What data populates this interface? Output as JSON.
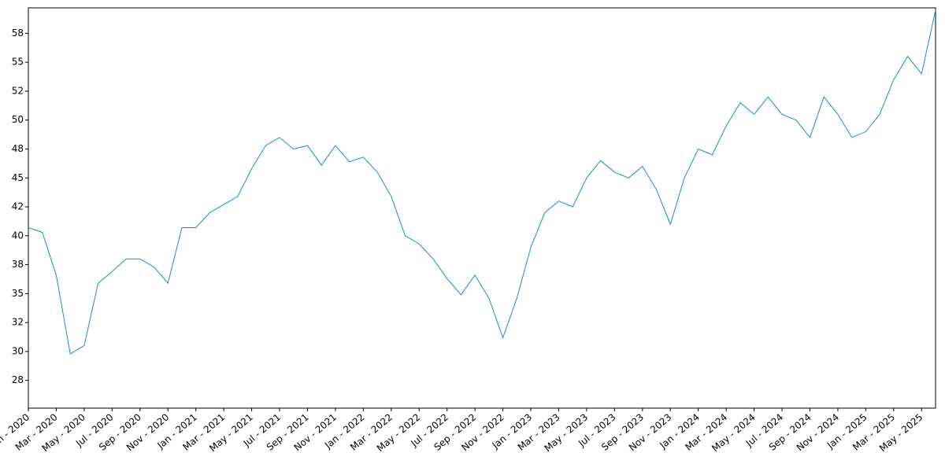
{
  "chart_data": {
    "type": "line",
    "x": [
      "2020-01",
      "2020-02",
      "2020-03",
      "2020-04",
      "2020-05",
      "2020-06",
      "2020-07",
      "2020-08",
      "2020-09",
      "2020-10",
      "2020-11",
      "2020-12",
      "2021-01",
      "2021-02",
      "2021-03",
      "2021-04",
      "2021-05",
      "2021-06",
      "2021-07",
      "2021-08",
      "2021-09",
      "2021-10",
      "2021-11",
      "2021-12",
      "2022-01",
      "2022-02",
      "2022-03",
      "2022-04",
      "2022-05",
      "2022-06",
      "2022-07",
      "2022-08",
      "2022-09",
      "2022-10",
      "2022-11",
      "2022-12",
      "2023-01",
      "2023-02",
      "2023-03",
      "2023-04",
      "2023-05",
      "2023-06",
      "2023-07",
      "2023-08",
      "2023-09",
      "2023-10",
      "2023-11",
      "2023-12",
      "2024-01",
      "2024-02",
      "2024-03",
      "2024-04",
      "2024-05",
      "2024-06",
      "2024-07",
      "2024-08",
      "2024-09",
      "2024-10",
      "2024-11",
      "2024-12",
      "2025-01",
      "2025-02",
      "2025-03",
      "2025-04",
      "2025-05",
      "2025-06"
    ],
    "series": [
      {
        "color": "#0f8ed6",
        "values": [
          40.7,
          40.3,
          36.6,
          29.8,
          30.5,
          35.9,
          36.9,
          38.0,
          38.0,
          37.3,
          35.9,
          40.7,
          40.7,
          42.0,
          42.7,
          43.4,
          45.8,
          47.8,
          48.5,
          47.5,
          47.8,
          46.1,
          47.8,
          46.4,
          46.8,
          45.5,
          43.4,
          40.0,
          39.3,
          38.0,
          36.3,
          34.9,
          36.6,
          34.6,
          31.2,
          34.6,
          39.0,
          42.0,
          43.0,
          42.5,
          45.0,
          46.5,
          45.5,
          45.0,
          46.0,
          44.0,
          41.0,
          45.0,
          47.5,
          47.0,
          49.5,
          51.5,
          50.5,
          52.0,
          50.5,
          50.0,
          48.5,
          52.0,
          50.5,
          48.5,
          49.0,
          50.5,
          53.5,
          55.5,
          54.0,
          59.5
        ]
      }
    ],
    "xlim": [
      "2020-01",
      "2025-06"
    ],
    "xticks": [
      {
        "value": "2020-01",
        "label": "Jan - 2020"
      },
      {
        "value": "2020-03",
        "label": "Mar - 2020"
      },
      {
        "value": "2020-05",
        "label": "May - 2020"
      },
      {
        "value": "2020-07",
        "label": "Jul - 2020"
      },
      {
        "value": "2020-09",
        "label": "Sep - 2020"
      },
      {
        "value": "2020-11",
        "label": "Nov - 2020"
      },
      {
        "value": "2021-01",
        "label": "Jan - 2021"
      },
      {
        "value": "2021-03",
        "label": "Mar - 2021"
      },
      {
        "value": "2021-05",
        "label": "May - 2021"
      },
      {
        "value": "2021-07",
        "label": "Jul - 2021"
      },
      {
        "value": "2021-09",
        "label": "Sep - 2021"
      },
      {
        "value": "2021-11",
        "label": "Nov - 2021"
      },
      {
        "value": "2022-01",
        "label": "Jan - 2022"
      },
      {
        "value": "2022-03",
        "label": "Mar - 2022"
      },
      {
        "value": "2022-05",
        "label": "May - 2022"
      },
      {
        "value": "2022-07",
        "label": "Jul - 2022"
      },
      {
        "value": "2022-09",
        "label": "Sep - 2022"
      },
      {
        "value": "2022-11",
        "label": "Nov - 2022"
      },
      {
        "value": "2023-01",
        "label": "Jan - 2023"
      },
      {
        "value": "2023-03",
        "label": "Mar - 2023"
      },
      {
        "value": "2023-05",
        "label": "May - 2023"
      },
      {
        "value": "2023-07",
        "label": "Jul - 2023"
      },
      {
        "value": "2023-09",
        "label": "Sep - 2023"
      },
      {
        "value": "2023-11",
        "label": "Nov - 2023"
      },
      {
        "value": "2024-01",
        "label": "Jan - 2024"
      },
      {
        "value": "2024-03",
        "label": "Mar - 2024"
      },
      {
        "value": "2024-05",
        "label": "May - 2024"
      },
      {
        "value": "2024-07",
        "label": "Jul - 2024"
      },
      {
        "value": "2024-09",
        "label": "Sep - 2024"
      },
      {
        "value": "2024-11",
        "label": "Nov - 2024"
      },
      {
        "value": "2025-01",
        "label": "Jan - 2025"
      },
      {
        "value": "2025-03",
        "label": "Mar - 2025"
      },
      {
        "value": "2025-05",
        "label": "May - 2025"
      }
    ],
    "ylim": [
      25.1,
      59.7
    ],
    "yticks": [
      {
        "value": 27.5,
        "label": "28"
      },
      30,
      {
        "value": 32.5,
        "label": "32"
      },
      35,
      {
        "value": 37.5,
        "label": "38"
      },
      40,
      {
        "value": 42.5,
        "label": "42"
      },
      45,
      {
        "value": 47.5,
        "label": "48"
      },
      50,
      {
        "value": 52.5,
        "label": "52"
      },
      55,
      {
        "value": 57.5,
        "label": "58"
      }
    ],
    "grid": false
  }
}
